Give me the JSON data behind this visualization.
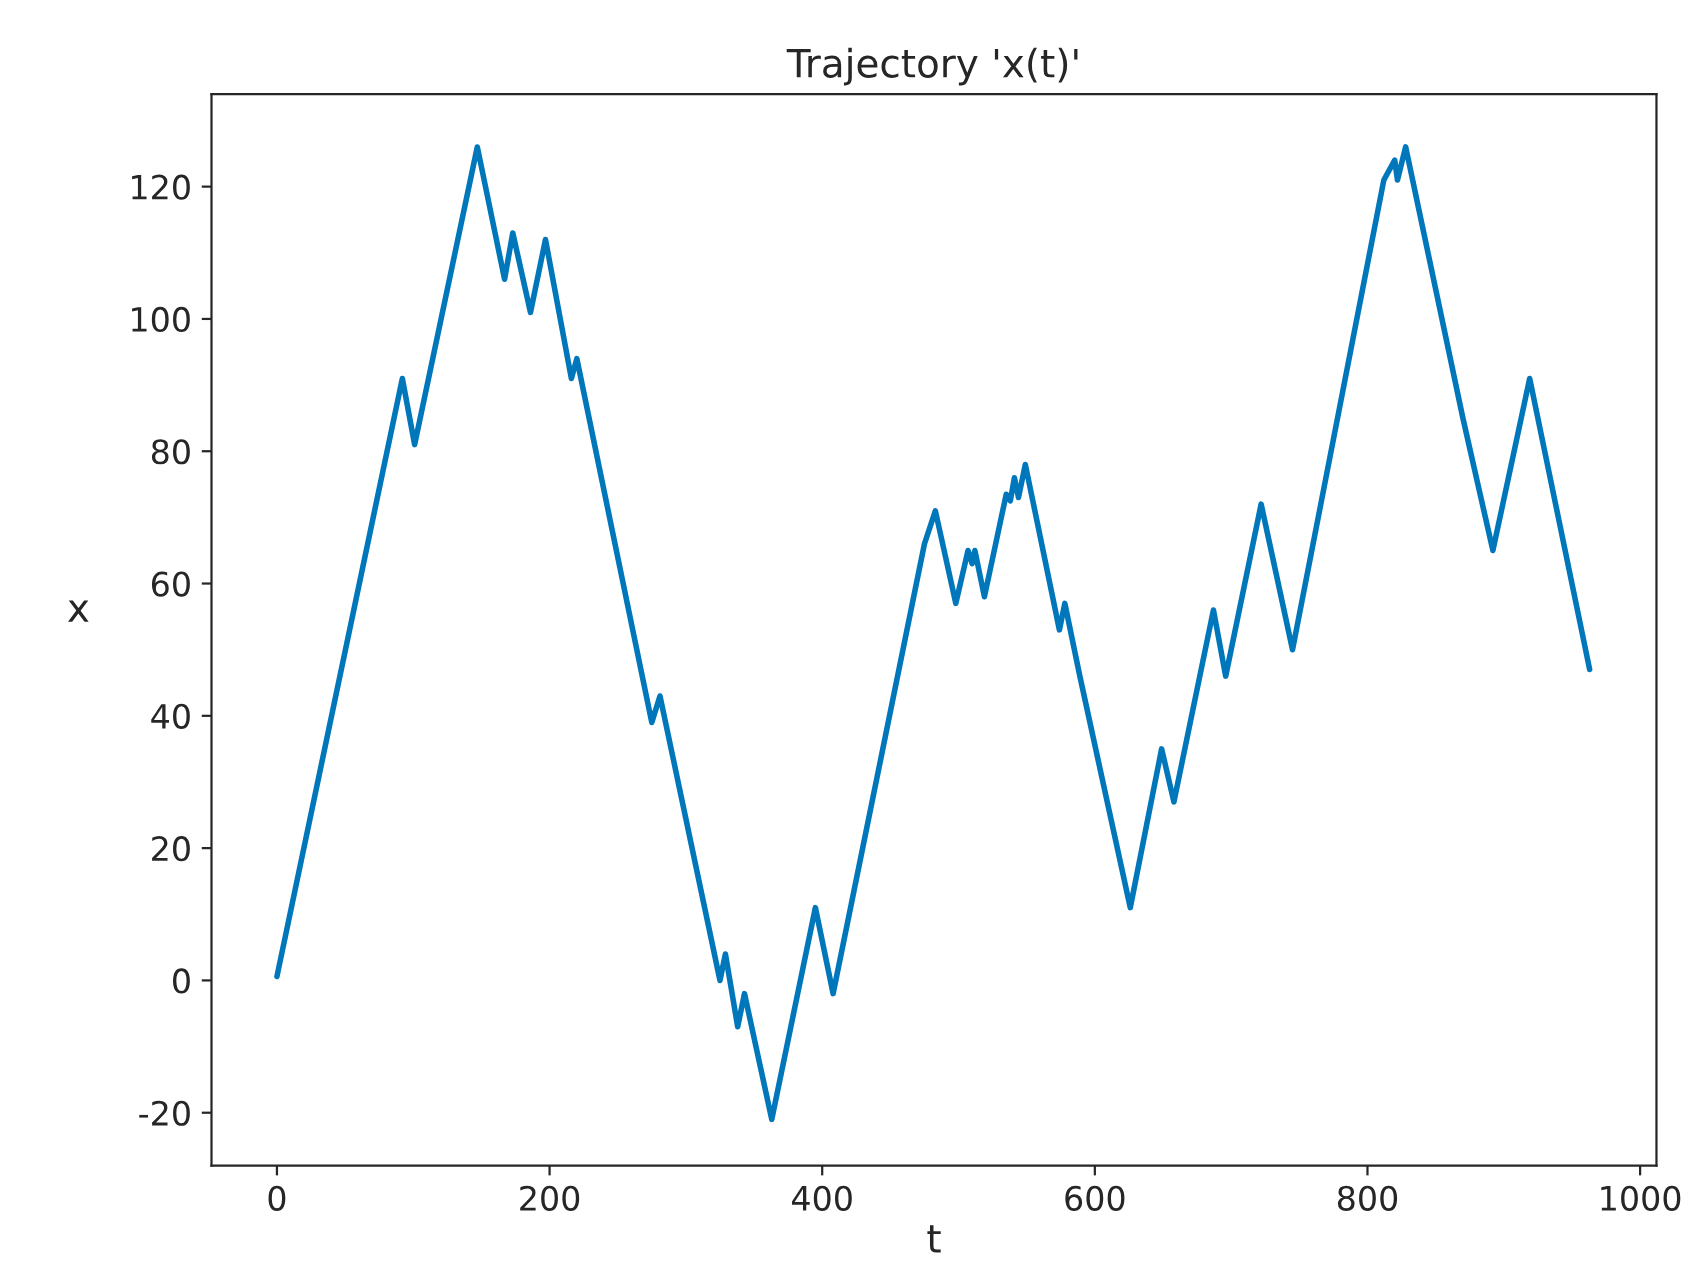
{
  "chart_data": {
    "type": "line",
    "title": "Trajectory 'x(t)'",
    "xlabel": "t",
    "ylabel": "x",
    "x": [
      0,
      92,
      101,
      147,
      167,
      173,
      186,
      197,
      216,
      220,
      275,
      281,
      325,
      329,
      338,
      343,
      363,
      395,
      408,
      475,
      483,
      498,
      507,
      510,
      512,
      519,
      535,
      538,
      541,
      544,
      549,
      574,
      578,
      589,
      626,
      649,
      658,
      687,
      696,
      722,
      745,
      812,
      820,
      822,
      828,
      870,
      892,
      919,
      963
    ],
    "series": [
      {
        "color": "#0077bb",
        "values": [
          0.6,
          91,
          81,
          126,
          106,
          113,
          101,
          112,
          91,
          94,
          39,
          43,
          0,
          4,
          -7,
          -2,
          -21,
          11,
          -2,
          66,
          71,
          57,
          65,
          63,
          65,
          58,
          73.5,
          72.5,
          76,
          73,
          78,
          53,
          57,
          46,
          11,
          35,
          27,
          56,
          46,
          72,
          50,
          121,
          124,
          121,
          126,
          85,
          65,
          91,
          47
        ]
      }
    ],
    "xlim": [
      -48,
      1012
    ],
    "ylim": [
      -28,
      134
    ],
    "xticks": [
      0,
      200,
      400,
      600,
      800,
      1000
    ],
    "yticks": [
      -20,
      0,
      20,
      40,
      60,
      80,
      100,
      120
    ],
    "grid": false,
    "legend": false,
    "marker": "none",
    "line_style": "solid"
  }
}
